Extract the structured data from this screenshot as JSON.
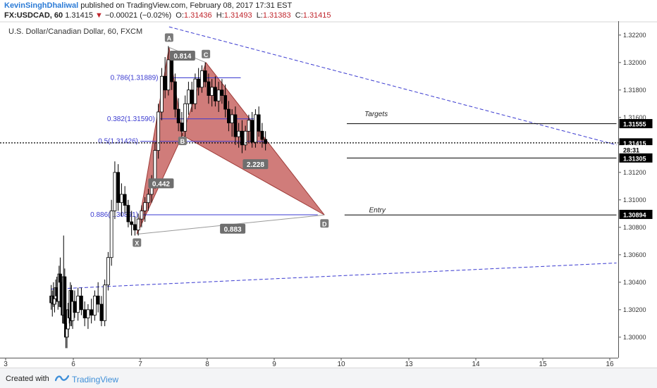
{
  "header": {
    "author": "KevinSinghDhaliwal",
    "published_text": "published on TradingView.com, February 08, 2017 17:31 EST",
    "symbol": "FX:USDCAD, 60",
    "last": "1.31415",
    "change": "−0.00021 (−0.02%)",
    "o_label": "O:",
    "o": "1.31436",
    "h_label": "H:",
    "h": "1.31493",
    "l_label": "L:",
    "l": "1.31383",
    "c_label": "C:",
    "c": "1.31415"
  },
  "footer": {
    "created": "Created with",
    "brand": "TradingView"
  },
  "colors": {
    "up": "#ffffff",
    "down": "#000000",
    "pattern": "#c0504d",
    "blue": "#3a3ad0",
    "price_tag": "#000000"
  },
  "chart_data": {
    "type": "candlestick",
    "title": "U.S. Dollar/Canadian Dollar, 60, FXCM",
    "x_ticks": [
      "3",
      "6",
      "7",
      "8",
      "9",
      "10",
      "13",
      "14",
      "15",
      "16"
    ],
    "y_ticks": [
      "1.32200",
      "1.32000",
      "1.31800",
      "1.31600",
      "1.31400",
      "1.31200",
      "1.31000",
      "1.30800",
      "1.30600",
      "1.30400",
      "1.30200",
      "1.30000",
      "1.29800"
    ],
    "ylim": [
      1.2978,
      1.3224
    ],
    "price_tags": [
      {
        "label": "1.31555",
        "value": 1.31555
      },
      {
        "label": "1.31415",
        "value": 1.31415
      },
      {
        "label": "28:31",
        "value": 1.31365
      },
      {
        "label": "1.31305",
        "value": 1.31305
      },
      {
        "label": "1.30894",
        "value": 1.30894
      }
    ],
    "fib_levels": [
      {
        "label": "0.786(1.31889)",
        "value": 1.31889
      },
      {
        "label": "0.382(1.31590)",
        "value": 1.3159
      },
      {
        "label": "0.5(1.31426)",
        "value": 1.31426
      },
      {
        "label": "0.886(1.30891)",
        "value": 1.30891
      }
    ],
    "pattern_points": [
      {
        "label": "X",
        "x": 6.95,
        "value": 1.3075
      },
      {
        "label": "A",
        "x": 7.43,
        "value": 1.3211
      },
      {
        "label": "B",
        "x": 7.63,
        "value": 1.3147
      },
      {
        "label": "C",
        "x": 7.98,
        "value": 1.32
      },
      {
        "label": "D",
        "x": 9.75,
        "value": 1.3089
      }
    ],
    "ratios": [
      {
        "label": "0.814",
        "x": 7.63,
        "value": 1.3205
      },
      {
        "label": "0.442",
        "x": 7.31,
        "value": 1.3112
      },
      {
        "label": "2.228",
        "x": 8.72,
        "value": 1.3126
      },
      {
        "label": "0.883",
        "x": 8.38,
        "value": 1.3079
      }
    ],
    "annotations": [
      {
        "text": "Targets",
        "x": 11.55,
        "value": 1.3161
      },
      {
        "text": "Entry",
        "x": 11.6,
        "value": 1.3091
      }
    ],
    "horizontal_lines": [
      {
        "value": 1.31555,
        "x_from": 10.25,
        "x_to": 16.1
      },
      {
        "value": 1.31305,
        "x_from": 10.25,
        "x_to": 16.1
      },
      {
        "value": 1.3089,
        "x_from": 10.15,
        "x_to": 16.1
      }
    ],
    "trend_lines": [
      {
        "from": [
          7.43,
          1.3226
        ],
        "to": [
          16.1,
          1.314
        ]
      },
      {
        "from": [
          5.0,
          1.3035
        ],
        "to": [
          16.1,
          1.3054
        ]
      }
    ],
    "candles": [
      {
        "x": 5.02,
        "o": 1.303,
        "h": 1.3038,
        "l": 1.302,
        "c": 1.3025
      },
      {
        "x": 5.07,
        "o": 1.3025,
        "h": 1.3034,
        "l": 1.3015,
        "c": 1.303
      },
      {
        "x": 5.12,
        "o": 1.303,
        "h": 1.304,
        "l": 1.3022,
        "c": 1.3024
      },
      {
        "x": 5.17,
        "o": 1.3024,
        "h": 1.3033,
        "l": 1.3018,
        "c": 1.3028
      },
      {
        "x": 5.22,
        "o": 1.3028,
        "h": 1.3042,
        "l": 1.3024,
        "c": 1.3036
      },
      {
        "x": 5.27,
        "o": 1.3036,
        "h": 1.3044,
        "l": 1.3026,
        "c": 1.303
      },
      {
        "x": 5.32,
        "o": 1.303,
        "h": 1.3038,
        "l": 1.302,
        "c": 1.3026
      },
      {
        "x": 5.37,
        "o": 1.3026,
        "h": 1.3052,
        "l": 1.3022,
        "c": 1.3046
      },
      {
        "x": 5.42,
        "o": 1.3046,
        "h": 1.3058,
        "l": 1.3034,
        "c": 1.304
      },
      {
        "x": 5.47,
        "o": 1.304,
        "h": 1.3046,
        "l": 1.3018,
        "c": 1.3022
      },
      {
        "x": 5.52,
        "o": 1.3022,
        "h": 1.3028,
        "l": 1.301,
        "c": 1.3016
      },
      {
        "x": 5.57,
        "o": 1.3016,
        "h": 1.3074,
        "l": 1.3012,
        "c": 1.3044
      },
      {
        "x": 5.62,
        "o": 1.3044,
        "h": 1.305,
        "l": 1.3,
        "c": 1.301
      },
      {
        "x": 5.67,
        "o": 1.301,
        "h": 1.302,
        "l": 1.2992,
        "c": 1.3
      },
      {
        "x": 5.72,
        "o": 1.3,
        "h": 1.3012,
        "l": 1.2992,
        "c": 1.3006
      },
      {
        "x": 5.77,
        "o": 1.3006,
        "h": 1.3025,
        "l": 1.3,
        "c": 1.302
      },
      {
        "x": 5.82,
        "o": 1.302,
        "h": 1.303,
        "l": 1.301,
        "c": 1.3014
      },
      {
        "x": 5.87,
        "o": 1.3014,
        "h": 1.304,
        "l": 1.3008,
        "c": 1.3034
      },
      {
        "x": 5.92,
        "o": 1.3034,
        "h": 1.3038,
        "l": 1.3008,
        "c": 1.3012
      },
      {
        "x": 5.97,
        "o": 1.3012,
        "h": 1.303,
        "l": 1.3006,
        "c": 1.3026
      },
      {
        "x": 6.02,
        "o": 1.3026,
        "h": 1.3034,
        "l": 1.3014,
        "c": 1.3018
      },
      {
        "x": 6.07,
        "o": 1.3018,
        "h": 1.3036,
        "l": 1.3012,
        "c": 1.303
      },
      {
        "x": 6.12,
        "o": 1.303,
        "h": 1.3036,
        "l": 1.3016,
        "c": 1.302
      },
      {
        "x": 6.17,
        "o": 1.302,
        "h": 1.3026,
        "l": 1.3008,
        "c": 1.3014
      },
      {
        "x": 6.22,
        "o": 1.3014,
        "h": 1.3024,
        "l": 1.3006,
        "c": 1.302
      },
      {
        "x": 6.27,
        "o": 1.302,
        "h": 1.3028,
        "l": 1.301,
        "c": 1.3016
      },
      {
        "x": 6.32,
        "o": 1.3016,
        "h": 1.3034,
        "l": 1.3012,
        "c": 1.303
      },
      {
        "x": 6.37,
        "o": 1.303,
        "h": 1.304,
        "l": 1.3018,
        "c": 1.3024
      },
      {
        "x": 6.42,
        "o": 1.3024,
        "h": 1.303,
        "l": 1.3008,
        "c": 1.3012
      },
      {
        "x": 6.47,
        "o": 1.3012,
        "h": 1.3042,
        "l": 1.3008,
        "c": 1.3038
      },
      {
        "x": 6.52,
        "o": 1.3038,
        "h": 1.3062,
        "l": 1.3034,
        "c": 1.3058
      },
      {
        "x": 6.57,
        "o": 1.3058,
        "h": 1.31,
        "l": 1.3052,
        "c": 1.3092
      },
      {
        "x": 6.62,
        "o": 1.3092,
        "h": 1.3128,
        "l": 1.3086,
        "c": 1.312
      },
      {
        "x": 6.67,
        "o": 1.312,
        "h": 1.3126,
        "l": 1.3092,
        "c": 1.3098
      },
      {
        "x": 6.72,
        "o": 1.3098,
        "h": 1.3112,
        "l": 1.3088,
        "c": 1.3104
      },
      {
        "x": 6.77,
        "o": 1.3104,
        "h": 1.311,
        "l": 1.309,
        "c": 1.3096
      },
      {
        "x": 6.82,
        "o": 1.3096,
        "h": 1.31,
        "l": 1.308,
        "c": 1.3084
      },
      {
        "x": 6.87,
        "o": 1.3084,
        "h": 1.3092,
        "l": 1.3074,
        "c": 1.3082
      },
      {
        "x": 6.92,
        "o": 1.3082,
        "h": 1.3088,
        "l": 1.3074,
        "c": 1.3078
      },
      {
        "x": 6.97,
        "o": 1.3078,
        "h": 1.309,
        "l": 1.3074,
        "c": 1.3086
      },
      {
        "x": 7.02,
        "o": 1.3086,
        "h": 1.3096,
        "l": 1.308,
        "c": 1.3092
      },
      {
        "x": 7.07,
        "o": 1.3092,
        "h": 1.3102,
        "l": 1.3084,
        "c": 1.3098
      },
      {
        "x": 7.12,
        "o": 1.3098,
        "h": 1.3108,
        "l": 1.3092,
        "c": 1.3104
      },
      {
        "x": 7.17,
        "o": 1.3104,
        "h": 1.3118,
        "l": 1.3098,
        "c": 1.3114
      },
      {
        "x": 7.22,
        "o": 1.3114,
        "h": 1.3142,
        "l": 1.3108,
        "c": 1.3136
      },
      {
        "x": 7.27,
        "o": 1.3136,
        "h": 1.317,
        "l": 1.313,
        "c": 1.3164
      },
      {
        "x": 7.32,
        "o": 1.3164,
        "h": 1.3196,
        "l": 1.3158,
        "c": 1.319
      },
      {
        "x": 7.37,
        "o": 1.319,
        "h": 1.3204,
        "l": 1.3174,
        "c": 1.318
      },
      {
        "x": 7.42,
        "o": 1.318,
        "h": 1.3212,
        "l": 1.3176,
        "c": 1.3202
      },
      {
        "x": 7.47,
        "o": 1.3202,
        "h": 1.3208,
        "l": 1.318,
        "c": 1.3186
      },
      {
        "x": 7.52,
        "o": 1.3186,
        "h": 1.3192,
        "l": 1.316,
        "c": 1.3166
      },
      {
        "x": 7.57,
        "o": 1.3166,
        "h": 1.3174,
        "l": 1.315,
        "c": 1.3156
      },
      {
        "x": 7.62,
        "o": 1.3156,
        "h": 1.3164,
        "l": 1.3146,
        "c": 1.315
      },
      {
        "x": 7.67,
        "o": 1.315,
        "h": 1.3176,
        "l": 1.3146,
        "c": 1.317
      },
      {
        "x": 7.72,
        "o": 1.317,
        "h": 1.3186,
        "l": 1.3162,
        "c": 1.318
      },
      {
        "x": 7.77,
        "o": 1.318,
        "h": 1.3186,
        "l": 1.3164,
        "c": 1.317
      },
      {
        "x": 7.82,
        "o": 1.317,
        "h": 1.3192,
        "l": 1.3166,
        "c": 1.3188
      },
      {
        "x": 7.87,
        "o": 1.3188,
        "h": 1.3196,
        "l": 1.3176,
        "c": 1.3182
      },
      {
        "x": 7.92,
        "o": 1.3182,
        "h": 1.3198,
        "l": 1.3178,
        "c": 1.3194
      },
      {
        "x": 7.97,
        "o": 1.3194,
        "h": 1.32,
        "l": 1.3182,
        "c": 1.3186
      },
      {
        "x": 8.02,
        "o": 1.3186,
        "h": 1.3192,
        "l": 1.317,
        "c": 1.3176
      },
      {
        "x": 8.07,
        "o": 1.3176,
        "h": 1.3188,
        "l": 1.3168,
        "c": 1.3182
      },
      {
        "x": 8.12,
        "o": 1.3182,
        "h": 1.319,
        "l": 1.3168,
        "c": 1.3172
      },
      {
        "x": 8.17,
        "o": 1.3172,
        "h": 1.3186,
        "l": 1.3164,
        "c": 1.318
      },
      {
        "x": 8.22,
        "o": 1.318,
        "h": 1.3188,
        "l": 1.317,
        "c": 1.3176
      },
      {
        "x": 8.27,
        "o": 1.3176,
        "h": 1.3184,
        "l": 1.316,
        "c": 1.3166
      },
      {
        "x": 8.32,
        "o": 1.3166,
        "h": 1.3172,
        "l": 1.315,
        "c": 1.3156
      },
      {
        "x": 8.37,
        "o": 1.3156,
        "h": 1.3166,
        "l": 1.3146,
        "c": 1.3162
      },
      {
        "x": 8.42,
        "o": 1.3162,
        "h": 1.3168,
        "l": 1.314,
        "c": 1.3146
      },
      {
        "x": 8.47,
        "o": 1.3146,
        "h": 1.3156,
        "l": 1.3138,
        "c": 1.315
      },
      {
        "x": 8.52,
        "o": 1.315,
        "h": 1.3158,
        "l": 1.3134,
        "c": 1.314
      },
      {
        "x": 8.57,
        "o": 1.314,
        "h": 1.3154,
        "l": 1.3136,
        "c": 1.315
      },
      {
        "x": 8.62,
        "o": 1.315,
        "h": 1.3162,
        "l": 1.3142,
        "c": 1.3158
      },
      {
        "x": 8.67,
        "o": 1.3158,
        "h": 1.3164,
        "l": 1.3138,
        "c": 1.3142
      },
      {
        "x": 8.72,
        "o": 1.3142,
        "h": 1.3166,
        "l": 1.3138,
        "c": 1.3162
      },
      {
        "x": 8.77,
        "o": 1.3162,
        "h": 1.3168,
        "l": 1.3146,
        "c": 1.315
      },
      {
        "x": 8.82,
        "o": 1.315,
        "h": 1.3156,
        "l": 1.3138,
        "c": 1.3144
      },
      {
        "x": 8.87,
        "o": 1.3144,
        "h": 1.315,
        "l": 1.3136,
        "c": 1.3141
      }
    ]
  }
}
